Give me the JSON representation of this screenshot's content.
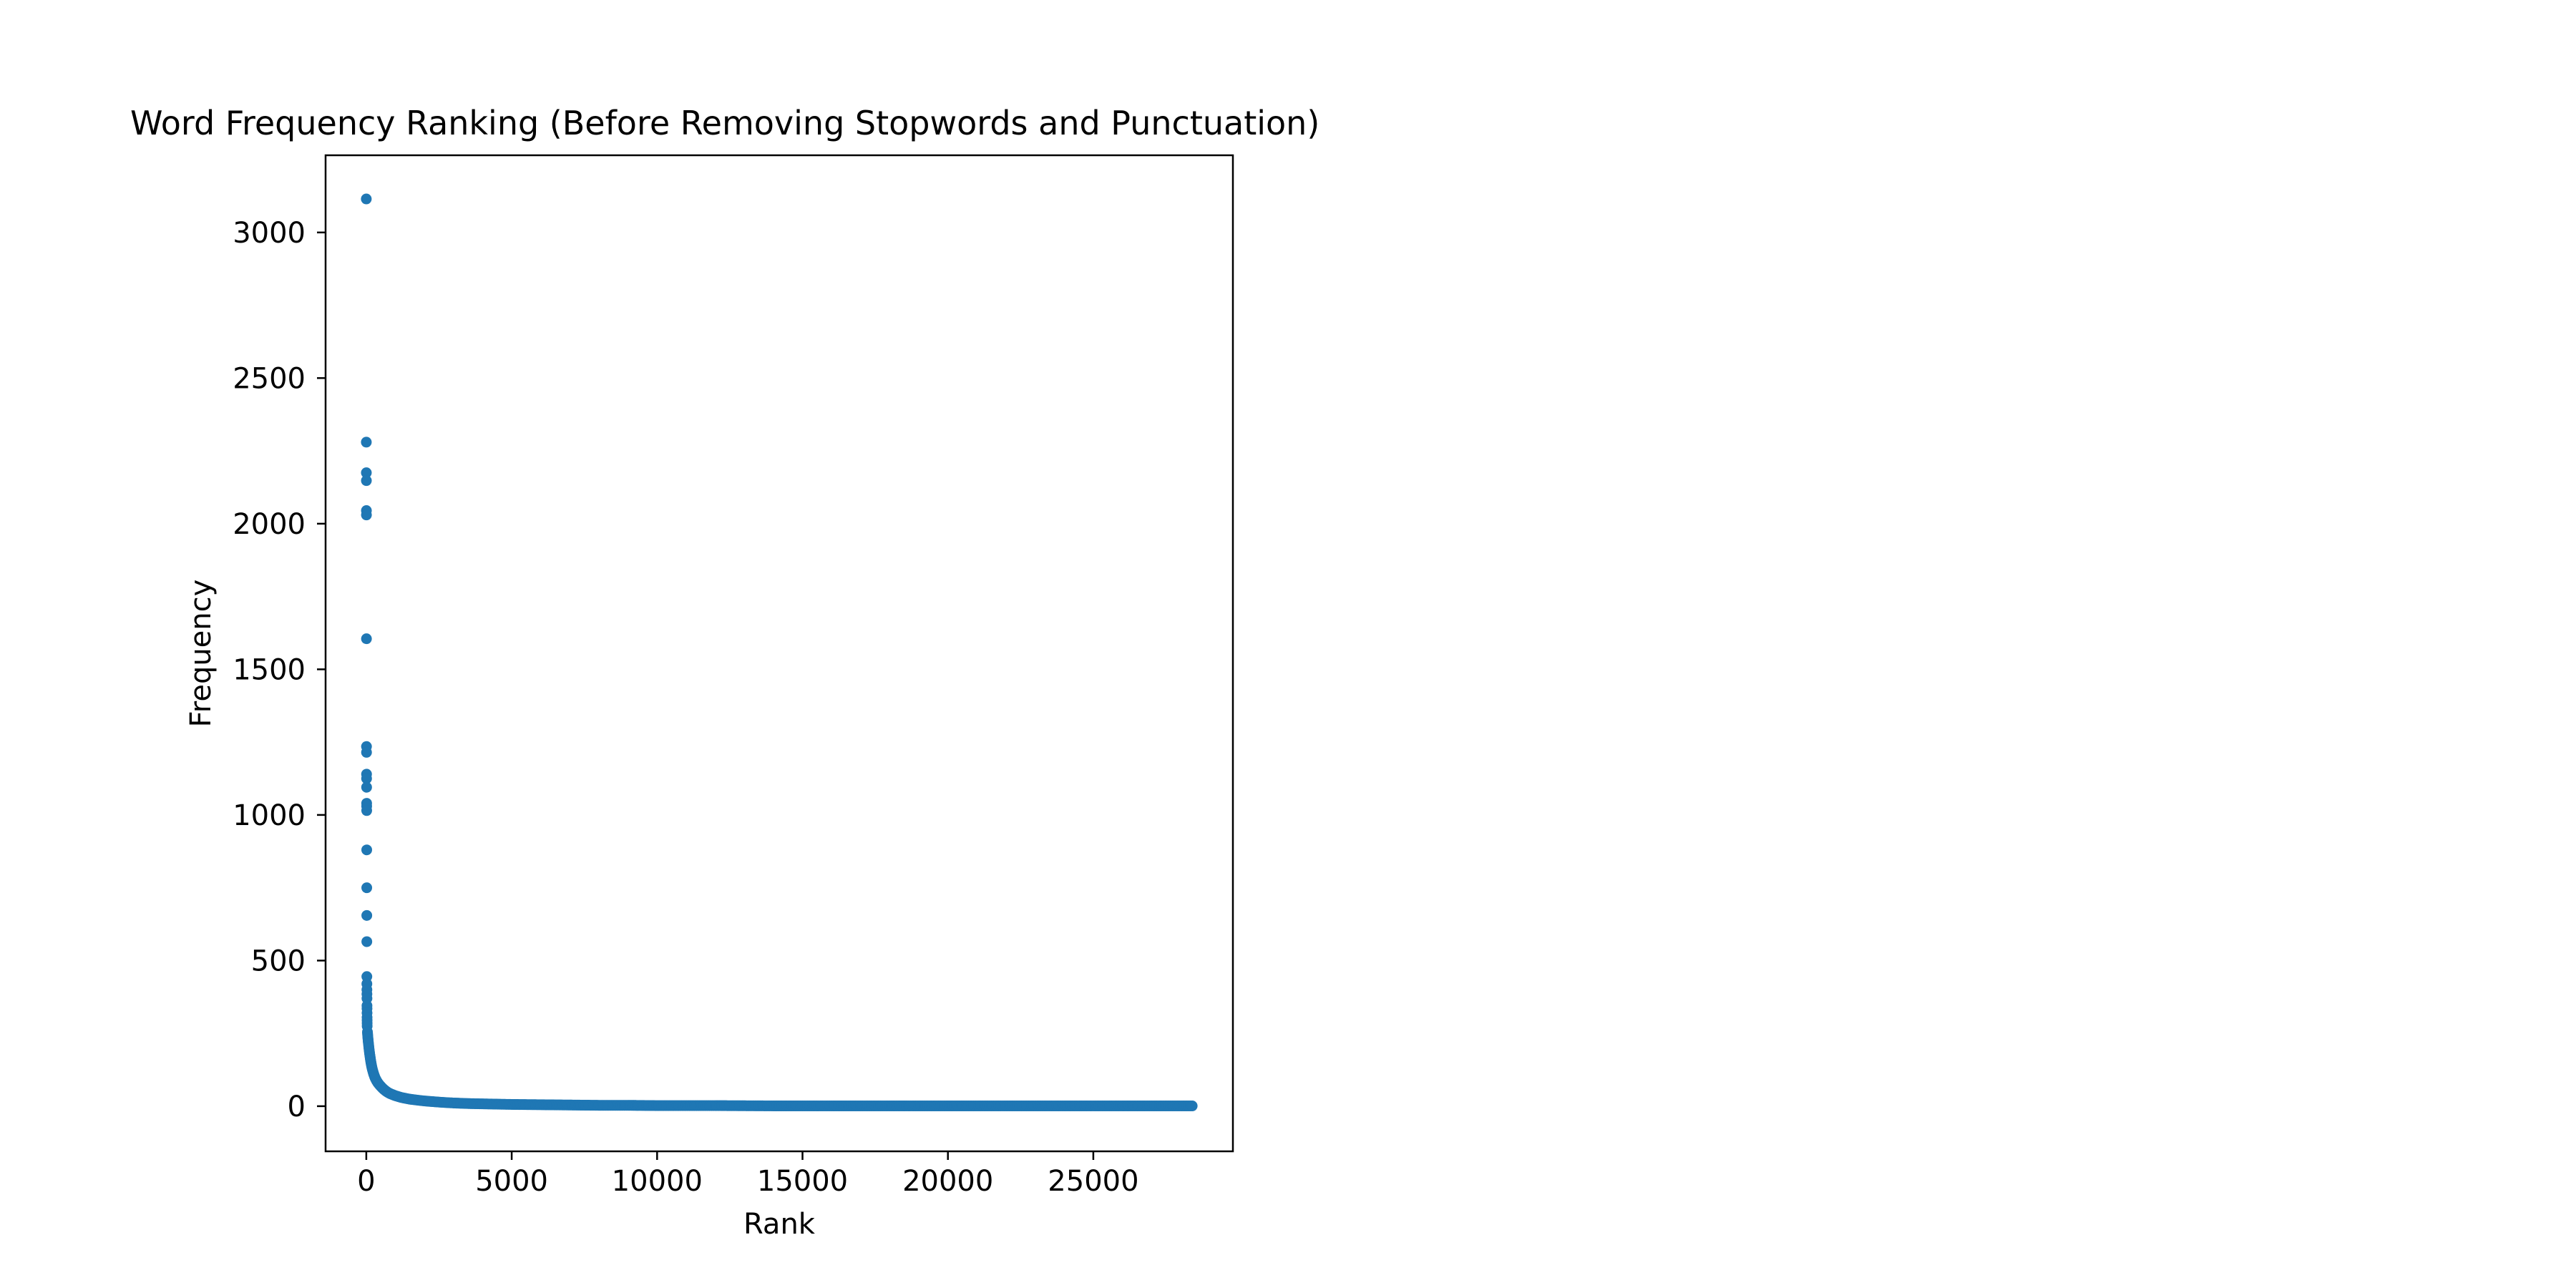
{
  "chart_data": {
    "type": "scatter",
    "title": "Word Frequency Ranking (Before Removing Stopwords and Punctuation)",
    "xlabel": "Rank",
    "ylabel": "Frequency",
    "xlim": [
      -1400,
      29800
    ],
    "ylim": [
      -155,
      3265
    ],
    "xticks": [
      0,
      5000,
      10000,
      15000,
      20000,
      25000
    ],
    "yticks": [
      0,
      500,
      1000,
      1500,
      2000,
      2500,
      3000
    ],
    "xtick_labels": [
      "0",
      "5000",
      "10000",
      "15000",
      "20000",
      "25000"
    ],
    "ytick_labels": [
      "0",
      "500",
      "1000",
      "1500",
      "2000",
      "2500",
      "3000"
    ],
    "grid": false,
    "marker_color": "#1f77b4",
    "head_points": {
      "rank": [
        0,
        1,
        2,
        3,
        4,
        5,
        6,
        7,
        8,
        9,
        10,
        11,
        12,
        13,
        14,
        15,
        16,
        17,
        18,
        19,
        20,
        21,
        22,
        23,
        24,
        25,
        26,
        27,
        28,
        29,
        30
      ],
      "frequency": [
        3115,
        2280,
        2175,
        2148,
        2045,
        2030,
        1605,
        1235,
        1215,
        1140,
        1125,
        1095,
        1040,
        1030,
        1015,
        880,
        750,
        655,
        565,
        445,
        420,
        400,
        385,
        370,
        345,
        335,
        320,
        305,
        295,
        285,
        275
      ]
    },
    "tail_curve": {
      "rank": [
        40,
        60,
        80,
        100,
        130,
        160,
        200,
        250,
        300,
        350,
        400,
        500,
        600,
        700,
        800,
        1000,
        1200,
        1500,
        2000,
        2500,
        3000,
        3500,
        4000,
        5000,
        6000,
        7000,
        8000,
        9000,
        10000,
        12000,
        14000,
        16000,
        18000,
        20000,
        22000,
        24000,
        26000,
        28400
      ],
      "frequency": [
        255,
        230,
        210,
        192,
        170,
        150,
        130,
        112,
        98,
        88,
        80,
        68,
        58,
        50,
        44,
        36,
        30,
        24,
        18,
        14,
        11,
        9,
        8,
        6,
        5,
        4,
        3,
        3,
        2,
        2,
        1,
        1,
        1,
        1,
        1,
        1,
        1,
        1
      ]
    }
  }
}
